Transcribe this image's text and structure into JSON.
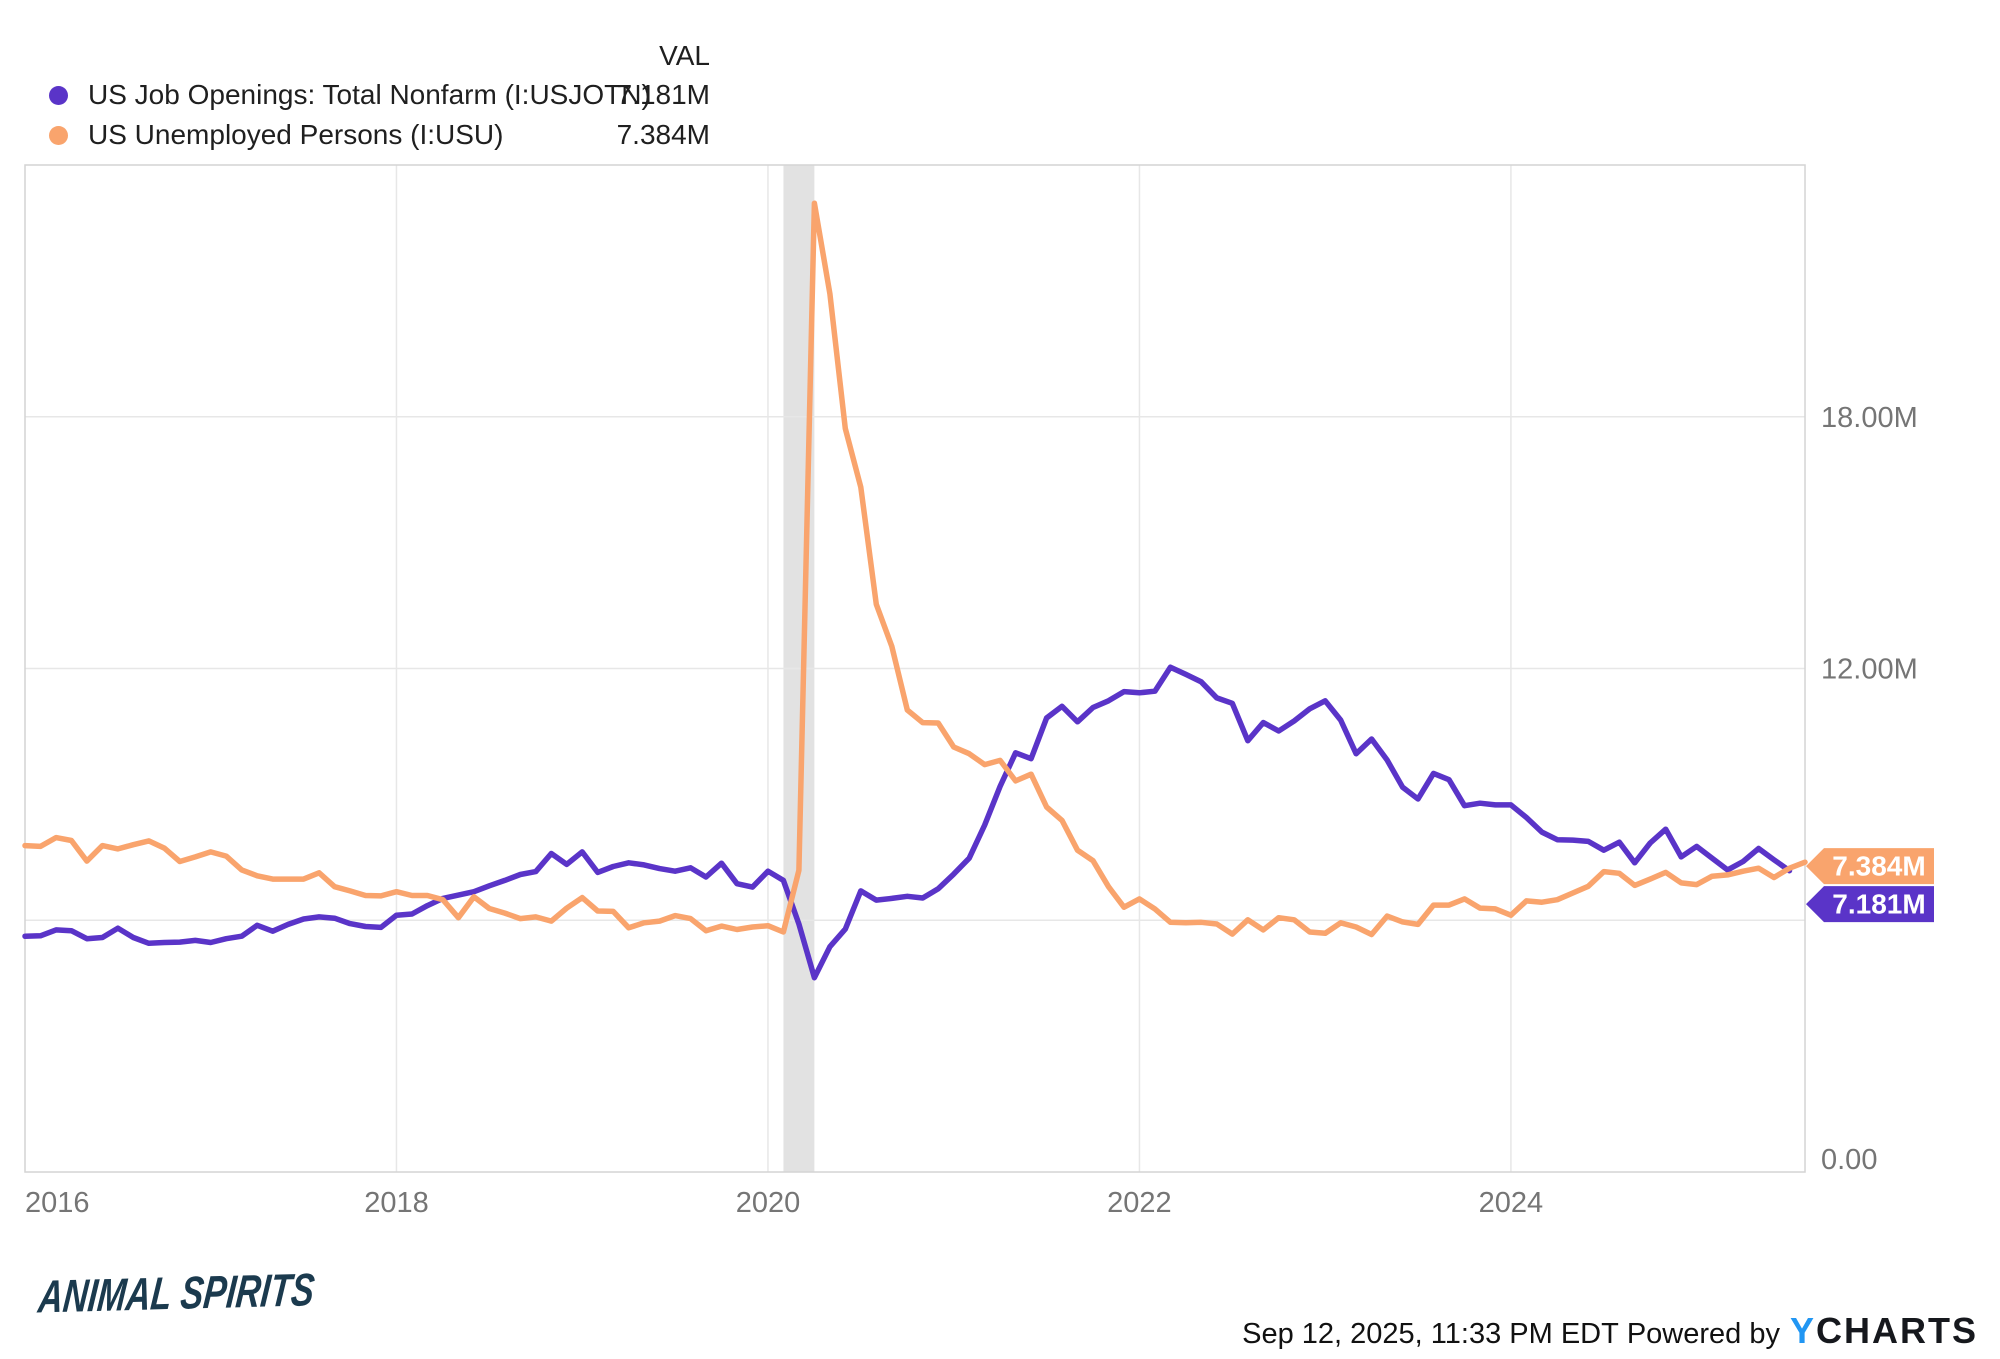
{
  "legend": {
    "val_header": "VAL",
    "series": [
      {
        "label": "US Job Openings: Total Nonfarm (I:USJOTN)",
        "value": "7.181M",
        "color": "#5a34c8"
      },
      {
        "label": "US Unemployed Persons (I:USU)",
        "value": "7.384M",
        "color": "#f9a46d"
      }
    ]
  },
  "chart_data": {
    "type": "line",
    "x_unit": "month",
    "x_start": "2016-01",
    "x_end": "2025-08",
    "grid": true,
    "legend_position": "top-left",
    "x_axis": {
      "labels": [
        {
          "text": "2016",
          "month_index": 0
        },
        {
          "text": "2018",
          "month_index": 24
        },
        {
          "text": "2020",
          "month_index": 48
        },
        {
          "text": "2022",
          "month_index": 72
        },
        {
          "text": "2024",
          "month_index": 96
        }
      ]
    },
    "y_axis": {
      "min": 0,
      "max": 24,
      "unit": "millions",
      "gridline_values": [
        6,
        12,
        18
      ],
      "tick_labels": [
        {
          "text": "18.00M",
          "value": 18
        },
        {
          "text": "12.00M",
          "value": 12
        },
        {
          "text": "0.00",
          "value": 0
        }
      ]
    },
    "recession_band": {
      "from_month_index": 49,
      "to_month_index": 51,
      "color": "#e2e2e2"
    },
    "series": [
      {
        "name": "US Job Openings: Total Nonfarm (I:USJOTN)",
        "color": "#5a34c8",
        "end_label": "7.181M",
        "first_month": "2016-01",
        "last_month": "2025-07",
        "values": [
          5.62,
          5.63,
          5.77,
          5.75,
          5.56,
          5.59,
          5.81,
          5.59,
          5.45,
          5.47,
          5.48,
          5.52,
          5.47,
          5.56,
          5.62,
          5.88,
          5.74,
          5.9,
          6.03,
          6.08,
          6.05,
          5.92,
          5.85,
          5.83,
          6.12,
          6.15,
          6.35,
          6.52,
          6.6,
          6.68,
          6.82,
          6.95,
          7.09,
          7.16,
          7.59,
          7.33,
          7.63,
          7.14,
          7.28,
          7.37,
          7.32,
          7.23,
          7.17,
          7.25,
          7.03,
          7.36,
          6.87,
          6.79,
          7.17,
          6.95,
          5.91,
          4.63,
          5.37,
          5.79,
          6.7,
          6.48,
          6.52,
          6.57,
          6.53,
          6.75,
          7.1,
          7.48,
          8.27,
          9.19,
          9.99,
          9.85,
          10.82,
          11.1,
          10.73,
          11.07,
          11.23,
          11.45,
          11.42,
          11.46,
          12.03,
          11.86,
          11.68,
          11.3,
          11.17,
          10.28,
          10.71,
          10.51,
          10.75,
          11.04,
          11.23,
          10.77,
          9.97,
          10.32,
          9.82,
          9.17,
          8.89,
          9.5,
          9.35,
          8.73,
          8.79,
          8.75,
          8.75,
          8.45,
          8.1,
          7.92,
          7.91,
          7.88,
          7.67,
          7.86,
          7.37,
          7.84,
          8.17,
          7.51,
          7.76,
          7.48,
          7.2,
          7.4,
          7.71,
          7.44,
          7.181
        ]
      },
      {
        "name": "US Unemployed Persons (I:USU)",
        "color": "#f9a46d",
        "end_label": "7.384M",
        "first_month": "2016-01",
        "last_month": "2025-08",
        "values": [
          7.78,
          7.76,
          7.97,
          7.9,
          7.41,
          7.78,
          7.7,
          7.8,
          7.89,
          7.72,
          7.4,
          7.51,
          7.63,
          7.53,
          7.2,
          7.06,
          6.98,
          6.98,
          6.98,
          7.13,
          6.8,
          6.7,
          6.59,
          6.58,
          6.68,
          6.59,
          6.59,
          6.49,
          6.06,
          6.56,
          6.28,
          6.17,
          6.04,
          6.08,
          5.98,
          6.29,
          6.54,
          6.22,
          6.21,
          5.82,
          5.94,
          5.98,
          6.11,
          6.04,
          5.75,
          5.86,
          5.78,
          5.84,
          5.87,
          5.72,
          7.19,
          23.09,
          20.93,
          17.72,
          16.32,
          13.53,
          12.53,
          11.01,
          10.71,
          10.7,
          10.13,
          9.97,
          9.71,
          9.81,
          9.32,
          9.48,
          8.7,
          8.38,
          7.67,
          7.42,
          6.8,
          6.31,
          6.51,
          6.27,
          5.95,
          5.94,
          5.95,
          5.91,
          5.67,
          6.01,
          5.77,
          6.06,
          6.01,
          5.72,
          5.69,
          5.94,
          5.84,
          5.66,
          6.1,
          5.96,
          5.9,
          6.36,
          6.36,
          6.51,
          6.29,
          6.27,
          6.12,
          6.46,
          6.43,
          6.49,
          6.65,
          6.81,
          7.16,
          7.12,
          6.83,
          6.98,
          7.14,
          6.89,
          6.85,
          7.05,
          7.08,
          7.17,
          7.24,
          7.02,
          7.24,
          7.384
        ]
      }
    ],
    "colors": {
      "gridline": "#e7e7e7",
      "plot_border": "#d4d4d4",
      "axis_text": "#757575",
      "tag_text": "#ffffff"
    }
  },
  "footer": {
    "brand": "ANIMAL SPIRITS",
    "timestamp": "Sep 12, 2025, 11:33 PM EDT",
    "powered_by": "Powered by",
    "provider_y": "Y",
    "provider_rest": "CHARTS"
  }
}
